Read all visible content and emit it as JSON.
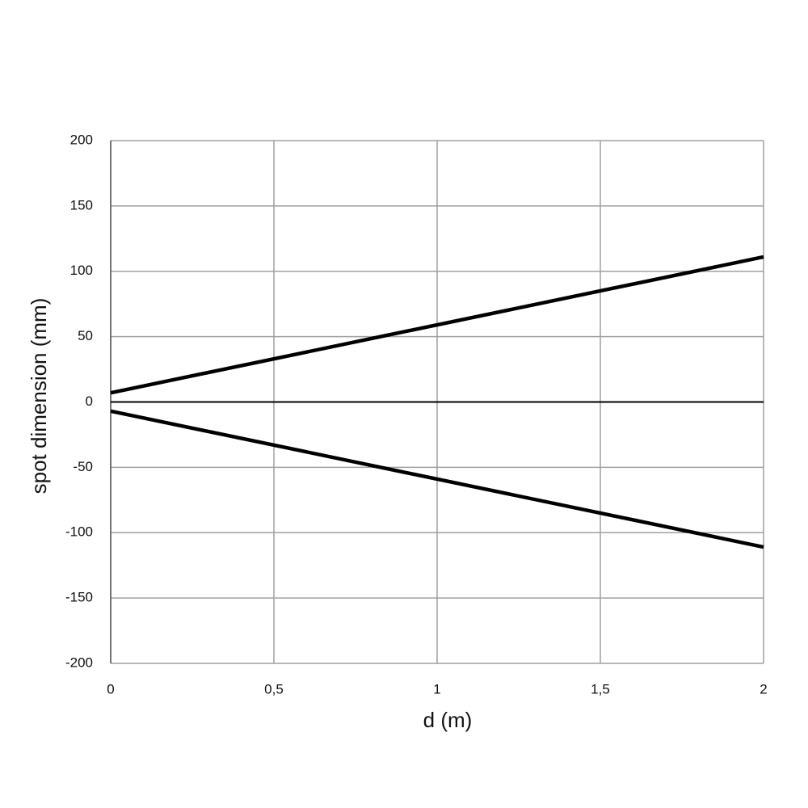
{
  "chart_data": {
    "type": "line",
    "x_label": "d (m)",
    "y_label": "spot dimension (mm)",
    "x": [
      0,
      2
    ],
    "series": [
      {
        "color": "#000000",
        "values": [
          7,
          111
        ]
      },
      {
        "color": "#000000",
        "values": [
          -7,
          -111
        ]
      }
    ],
    "xlim": [
      0,
      2
    ],
    "xticks": [
      0,
      {
        "value": 0.5,
        "label": "0,5"
      },
      1,
      {
        "value": 1.5,
        "label": "1,5"
      },
      2
    ],
    "ylim": [
      -200,
      200
    ],
    "yticks": [
      200,
      150,
      100,
      50,
      0,
      -50,
      -100,
      -150,
      -200
    ],
    "grid": true
  }
}
